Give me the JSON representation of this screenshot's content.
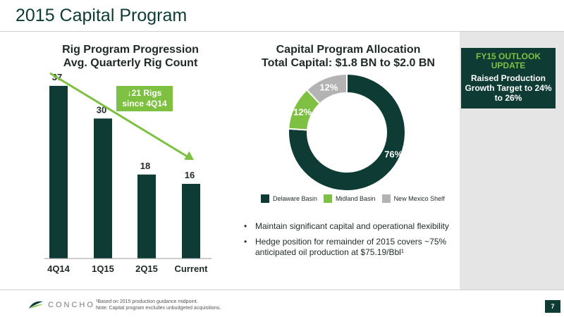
{
  "slide": {
    "title": "2015 Capital Program",
    "page_number": "7"
  },
  "outlook": {
    "heading": "FY15 OUTLOOK UPDATE",
    "body": "Raised Production Growth Target to 24% to 26%"
  },
  "callout": {
    "text": "↓21 Rigs since 4Q14"
  },
  "bullets": [
    "Maintain significant capital and operational flexibility",
    "Hedge position for remainder of 2015 covers ~75% anticipated oil production at $75.19/Bbl¹"
  ],
  "footer": {
    "logo_text": "CONCHO",
    "footnote_line1": "¹Based on 2015 production guidance midpoint.",
    "footnote_line2": "Note: Capital program excludes unbudgeted acquisitions."
  },
  "colors": {
    "dark_green": "#0e3b33",
    "light_green": "#7ec142",
    "gray": "#b3b3b3"
  },
  "chart_data": [
    {
      "type": "bar",
      "title": "Rig Program Progression",
      "subtitle": "Avg. Quarterly Rig Count",
      "categories": [
        "4Q14",
        "1Q15",
        "2Q15",
        "Current"
      ],
      "values": [
        37,
        30,
        18,
        16
      ],
      "ylim": [
        0,
        40
      ],
      "grid": false,
      "color": "#0e3b33",
      "trend_arrow": {
        "from": "4Q14",
        "to": "Current"
      }
    },
    {
      "type": "pie",
      "donut": true,
      "title": "Capital Program Allocation",
      "subtitle": "Total Capital: $1.8 BN to $2.0 BN",
      "categories": [
        "Delaware Basin",
        "Midland Basin",
        "New Mexico Shelf"
      ],
      "values": [
        76,
        12,
        12
      ],
      "value_labels": [
        "76%",
        "12%",
        "12%"
      ],
      "colors": [
        "#0e3b33",
        "#7ec142",
        "#b3b3b3"
      ],
      "legend_position": "bottom"
    }
  ]
}
